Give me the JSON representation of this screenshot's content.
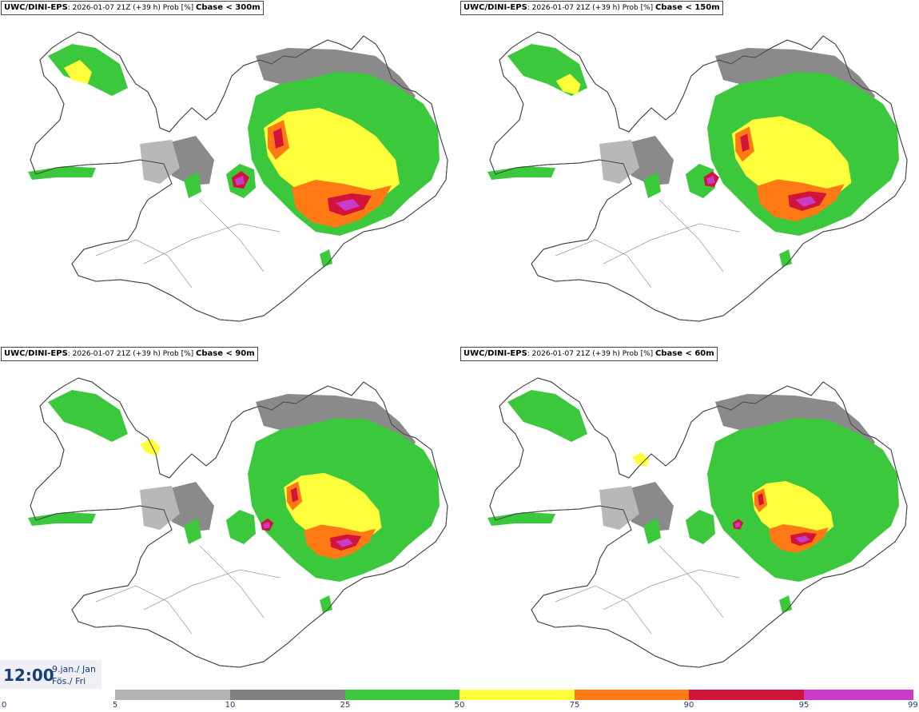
{
  "panels": [
    {
      "model": "UWC/DINI-EPS",
      "info": ": 2026-01-07 21Z (+39 h) Prob [%] ",
      "variable": "Cbase < 300m"
    },
    {
      "model": "UWC/DINI-EPS",
      "info": ": 2026-01-07 21Z (+39 h) Prob [%] ",
      "variable": "Cbase < 150m"
    },
    {
      "model": "UWC/DINI-EPS",
      "info": ": 2026-01-07 21Z (+39 h) Prob [%] ",
      "variable": "Cbase < 90m"
    },
    {
      "model": "UWC/DINI-EPS",
      "info": ": 2026-01-07 21Z (+39 h) Prob [%] ",
      "variable": "Cbase < 60m"
    }
  ],
  "time": {
    "clock": "12:00",
    "date_line1": "9.jan./ Jan",
    "date_line2": "Fös./ Fri"
  },
  "colorbar": {
    "ticks": [
      "0",
      "5",
      "10",
      "25",
      "50",
      "75",
      "90",
      "95",
      "99"
    ],
    "colors": [
      "#b3b3b3",
      "#808080",
      "#3cc83c",
      "#ffff3c",
      "#ff7a14",
      "#d2143c",
      "#c83cc8",
      "#f4b4f4"
    ]
  }
}
